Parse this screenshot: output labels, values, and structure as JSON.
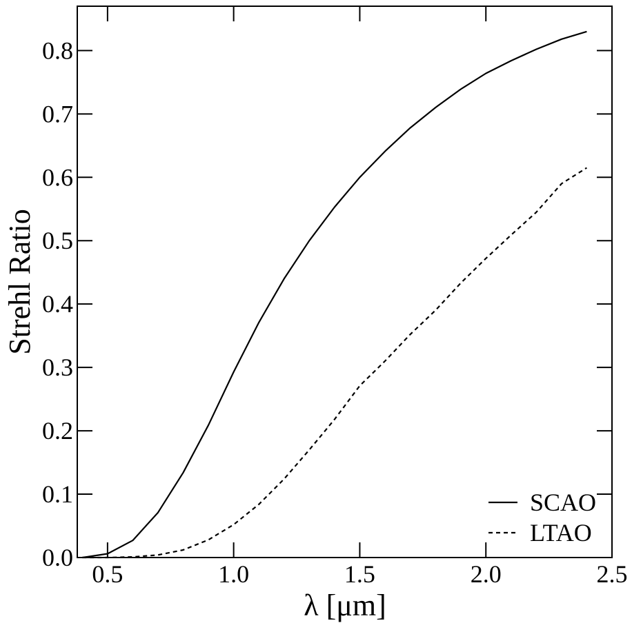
{
  "chart_data": {
    "type": "line",
    "title": "",
    "xlabel": "λ [μm]",
    "ylabel": "Strehl Ratio",
    "xlim": [
      0.38,
      2.5
    ],
    "ylim": [
      0.0,
      0.87
    ],
    "xticks": [
      0.5,
      1.0,
      1.5,
      2.0,
      2.5
    ],
    "xtick_labels": [
      "0.5",
      "1.0",
      "1.5",
      "2.0",
      "2.5"
    ],
    "yticks": [
      0.0,
      0.1,
      0.2,
      0.3,
      0.4,
      0.5,
      0.6,
      0.7,
      0.8
    ],
    "ytick_labels": [
      "0.0",
      "0.1",
      "0.2",
      "0.3",
      "0.4",
      "0.5",
      "0.6",
      "0.7",
      "0.8"
    ],
    "grid": false,
    "legend_position": "bottom-right",
    "series": [
      {
        "name": "SCAO",
        "style": "solid",
        "x": [
          0.4,
          0.5,
          0.6,
          0.7,
          0.8,
          0.9,
          1.0,
          1.1,
          1.2,
          1.3,
          1.4,
          1.5,
          1.6,
          1.7,
          1.8,
          1.9,
          2.0,
          2.1,
          2.2,
          2.3,
          2.4
        ],
        "y": [
          0.0,
          0.006,
          0.027,
          0.071,
          0.134,
          0.209,
          0.293,
          0.371,
          0.44,
          0.5,
          0.553,
          0.6,
          0.641,
          0.678,
          0.71,
          0.739,
          0.764,
          0.784,
          0.802,
          0.818,
          0.83
        ]
      },
      {
        "name": "LTAO",
        "style": "dashed",
        "x": [
          0.4,
          0.5,
          0.6,
          0.7,
          0.8,
          0.9,
          1.0,
          1.1,
          1.2,
          1.3,
          1.4,
          1.5,
          1.6,
          1.7,
          1.8,
          1.9,
          2.0,
          2.1,
          2.2,
          2.3,
          2.4
        ],
        "y": [
          0.0,
          0.0,
          0.001,
          0.004,
          0.012,
          0.028,
          0.052,
          0.084,
          0.124,
          0.17,
          0.218,
          0.271,
          0.31,
          0.352,
          0.39,
          0.433,
          0.472,
          0.509,
          0.545,
          0.59,
          0.615
        ]
      }
    ]
  }
}
